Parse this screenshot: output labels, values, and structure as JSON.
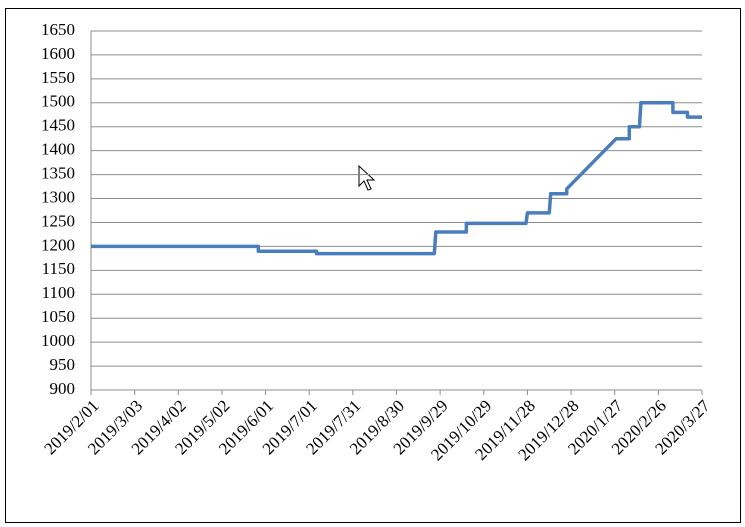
{
  "chart_data": {
    "type": "line",
    "x": [
      "2019-02-01",
      "2019-05-27",
      "2019-05-27",
      "2019-07-06",
      "2019-07-06",
      "2019-09-25",
      "2019-09-26",
      "2019-10-17",
      "2019-10-17",
      "2019-11-27",
      "2019-11-28",
      "2019-12-13",
      "2019-12-14",
      "2019-12-25",
      "2019-12-25",
      "2020-01-28",
      "2020-02-06",
      "2020-02-06",
      "2020-02-13",
      "2020-02-14",
      "2020-03-07",
      "2020-03-07",
      "2020-03-17",
      "2020-03-17",
      "2020-03-27"
    ],
    "series": [
      {
        "color": "#4a7ebb",
        "values": [
          1200,
          1200,
          1190,
          1190,
          1185,
          1185,
          1230,
          1230,
          1248,
          1248,
          1270,
          1270,
          1310,
          1310,
          1320,
          1425,
          1425,
          1450,
          1450,
          1500,
          1500,
          1480,
          1480,
          1470,
          1470
        ]
      }
    ],
    "xlim": [
      "2019-02-01",
      "2020-03-27"
    ],
    "xticks": [
      {
        "value": "2019-02-01",
        "label": "2019/2/01"
      },
      {
        "value": "2019-03-03",
        "label": "2019/3/03"
      },
      {
        "value": "2019-04-02",
        "label": "2019/4/02"
      },
      {
        "value": "2019-05-02",
        "label": "2019/5/02"
      },
      {
        "value": "2019-06-01",
        "label": "2019/6/01"
      },
      {
        "value": "2019-07-01",
        "label": "2019/7/01"
      },
      {
        "value": "2019-07-31",
        "label": "2019/7/31"
      },
      {
        "value": "2019-08-30",
        "label": "2019/8/30"
      },
      {
        "value": "2019-09-29",
        "label": "2019/9/29"
      },
      {
        "value": "2019-10-29",
        "label": "2019/10/29"
      },
      {
        "value": "2019-11-28",
        "label": "2019/11/28"
      },
      {
        "value": "2019-12-28",
        "label": "2019/12/28"
      },
      {
        "value": "2020-01-27",
        "label": "2020/1/27"
      },
      {
        "value": "2020-02-26",
        "label": "2020/2/26"
      },
      {
        "value": "2020-03-27",
        "label": "2020/3/27"
      }
    ],
    "ylim": [
      900,
      1650
    ],
    "yticks": [
      900,
      950,
      1000,
      1050,
      1100,
      1150,
      1200,
      1250,
      1300,
      1350,
      1400,
      1450,
      1500,
      1550,
      1600,
      1650
    ],
    "grid": true
  }
}
